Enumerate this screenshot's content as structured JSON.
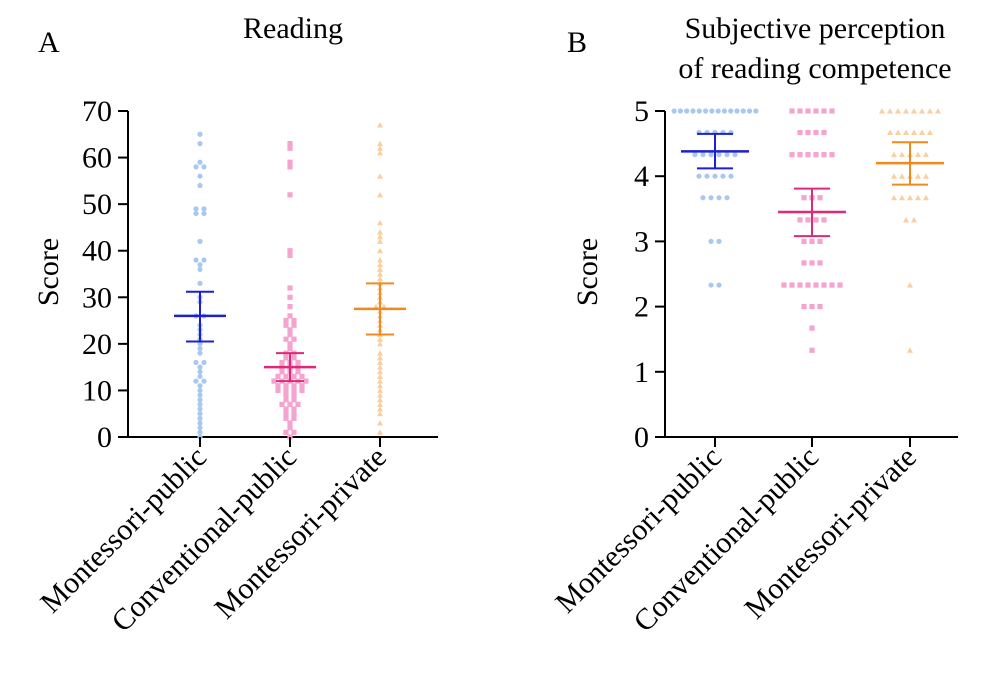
{
  "colors": {
    "montessori_public": "#1f1fd1",
    "montessori_public_points": "#a9c8f0",
    "conventional_public": "#e0287a",
    "conventional_public_points": "#f5a3cf",
    "montessori_private": "#f0891e",
    "montessori_private_points": "#f9cf9e"
  },
  "chart_data": [
    {
      "panel_letter": "A",
      "type": "scatter",
      "title": "Reading",
      "ylabel": "Score",
      "ylim": [
        0,
        70
      ],
      "yticks": [
        "0",
        "10",
        "20",
        "30",
        "40",
        "50",
        "60",
        "70"
      ],
      "categories": [
        "Montessori-public",
        "Conventional-public",
        "Montessori-private"
      ],
      "grid": false,
      "series": [
        {
          "category": "Montessori-public",
          "marker": "circle",
          "mean": 26,
          "ci": [
            20.5,
            31.2
          ],
          "points": [
            65,
            63,
            59,
            58,
            58,
            56,
            54,
            49,
            49,
            48,
            48,
            42,
            38,
            38,
            37,
            36,
            33,
            30,
            29,
            26,
            26,
            24,
            23,
            22,
            21,
            20,
            19,
            18,
            16,
            16,
            15,
            14,
            13,
            12,
            12,
            11,
            10,
            9,
            8,
            7,
            6,
            5,
            4,
            3,
            2,
            1,
            0
          ]
        },
        {
          "category": "Conventional-public",
          "marker": "square",
          "mean": 15,
          "ci": [
            12,
            18
          ],
          "points": [
            63,
            62,
            59,
            58,
            52,
            40,
            39,
            32,
            30,
            28,
            26,
            25,
            25,
            24,
            24,
            23,
            22,
            21,
            21,
            20,
            19,
            18,
            18,
            17,
            17,
            16,
            16,
            16,
            15,
            15,
            15,
            14,
            14,
            14,
            13,
            13,
            13,
            13,
            12,
            12,
            12,
            12,
            12,
            11,
            11,
            11,
            11,
            10,
            10,
            10,
            10,
            9,
            9,
            8,
            8,
            7,
            7,
            7,
            6,
            6,
            5,
            5,
            4,
            4,
            3,
            2,
            1,
            1,
            0
          ]
        },
        {
          "category": "Montessori-private",
          "marker": "triangle",
          "mean": 27.5,
          "ci": [
            22,
            33
          ],
          "points": [
            67,
            63,
            62,
            61,
            56,
            52,
            46,
            44,
            43,
            42,
            40,
            38,
            37,
            36,
            35,
            34,
            33,
            32,
            31,
            30,
            29,
            28,
            28,
            27,
            26,
            25,
            24,
            23,
            22,
            21,
            20,
            18,
            17,
            16,
            15,
            14,
            13,
            12,
            11,
            10,
            9,
            8,
            7,
            6,
            5,
            3,
            1
          ]
        }
      ]
    },
    {
      "panel_letter": "B",
      "type": "scatter",
      "title": "Subjective perception of reading competence",
      "title_lines": [
        "Subjective perception",
        "of reading competence"
      ],
      "ylabel": "Score",
      "ylim": [
        0,
        5
      ],
      "yticks": [
        "0",
        "1",
        "2",
        "3",
        "4",
        "5"
      ],
      "categories": [
        "Montessori-public",
        "Conventional-public",
        "Montessori-private"
      ],
      "grid": false,
      "series": [
        {
          "category": "Montessori-public",
          "marker": "circle",
          "mean": 4.38,
          "ci": [
            4.12,
            4.65
          ],
          "points": [
            5,
            5,
            5,
            5,
            5,
            5,
            5,
            5,
            5,
            5,
            5,
            5,
            5,
            5,
            4.67,
            4.67,
            4.67,
            4.67,
            4.67,
            4.33,
            4.33,
            4.33,
            4.33,
            4.33,
            4.33,
            4,
            4,
            4,
            4,
            4,
            3.67,
            3.67,
            3.67,
            3.67,
            3,
            3,
            2.33,
            2.33
          ]
        },
        {
          "category": "Conventional-public",
          "marker": "square",
          "mean": 3.45,
          "ci": [
            3.08,
            3.81
          ],
          "points": [
            5,
            5,
            5,
            5,
            5,
            5,
            4.67,
            4.67,
            4.67,
            4.67,
            4.33,
            4.33,
            4.33,
            4.33,
            4.33,
            4.33,
            3.67,
            3.67,
            3.67,
            3.33,
            3.33,
            3.33,
            3.33,
            3,
            3,
            3,
            2.67,
            2.67,
            2.67,
            2.33,
            2.33,
            2.33,
            2.33,
            2.33,
            2.33,
            2.33,
            2.33,
            2,
            2,
            2,
            1.67,
            1.33
          ]
        },
        {
          "category": "Montessori-private",
          "marker": "triangle",
          "mean": 4.2,
          "ci": [
            3.87,
            4.52
          ],
          "points": [
            5,
            5,
            5,
            5,
            5,
            5,
            5,
            5,
            4.67,
            4.67,
            4.67,
            4.67,
            4.67,
            4.67,
            4.33,
            4.33,
            4.33,
            4.33,
            4.33,
            4,
            4,
            4,
            4,
            4,
            3.67,
            3.67,
            3.67,
            3.67,
            3.67,
            3.33,
            3.33,
            2.33,
            1.33
          ]
        }
      ]
    }
  ]
}
